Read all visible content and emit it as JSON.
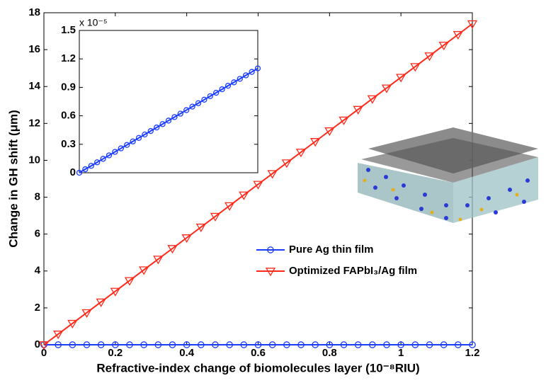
{
  "chart_data": [
    {
      "type": "line",
      "xlabel": "Refractive-index change of biomolecules layer (10⁻⁸RIU)",
      "ylabel": "Change in GH shift (μm)",
      "x": [
        0,
        0.04,
        0.08,
        0.12,
        0.16,
        0.2,
        0.24,
        0.28,
        0.32,
        0.36,
        0.4,
        0.44,
        0.48,
        0.52,
        0.56,
        0.6,
        0.64,
        0.68,
        0.72,
        0.76,
        0.8,
        0.84,
        0.88,
        0.92,
        0.96,
        1,
        1.04,
        1.08,
        1.12,
        1.16,
        1.2
      ],
      "series": [
        {
          "name": "Pure Ag thin film",
          "color": "#1a3cff",
          "marker": "circle",
          "values": [
            0,
            0,
            0,
            0,
            0,
            0,
            0,
            0,
            0,
            0,
            0,
            0,
            0,
            0,
            0,
            0,
            0,
            0,
            0,
            0,
            0,
            0,
            0,
            0,
            0,
            0,
            0,
            0,
            0,
            0,
            0
          ]
        },
        {
          "name": "Optimized FAPbI₃/Ag film",
          "color": "#ff2a1a",
          "marker": "triangle-down",
          "values": [
            0,
            0.58,
            1.16,
            1.74,
            2.32,
            2.9,
            3.48,
            4.06,
            4.64,
            5.22,
            5.8,
            6.38,
            6.96,
            7.54,
            8.12,
            8.7,
            9.28,
            9.86,
            10.44,
            11.02,
            11.6,
            12.18,
            12.76,
            13.34,
            13.92,
            14.5,
            15.08,
            15.66,
            16.24,
            16.82,
            17.4
          ]
        }
      ],
      "xlim": [
        0,
        1.2
      ],
      "xticks": [
        0,
        0.2,
        0.4,
        0.6,
        0.8,
        1,
        1.2
      ],
      "ylim": [
        0,
        18
      ],
      "yticks": [
        0,
        2,
        4,
        6,
        8,
        10,
        12,
        14,
        16,
        18
      ],
      "legend": "right"
    },
    {
      "type": "line",
      "ylabel_multiplier": "x 10⁻⁵",
      "x": [
        0,
        0.04,
        0.08,
        0.12,
        0.16,
        0.2,
        0.24,
        0.28,
        0.32,
        0.36,
        0.4,
        0.44,
        0.48,
        0.52,
        0.56,
        0.6,
        0.64,
        0.68,
        0.72,
        0.76,
        0.8,
        0.84,
        0.88,
        0.92,
        0.96,
        1,
        1.04,
        1.08,
        1.12,
        1.16,
        1.2
      ],
      "series": [
        {
          "color": "#1a3cff",
          "marker": "circle",
          "values": [
            0,
            0.037,
            0.073,
            0.11,
            0.147,
            0.183,
            0.22,
            0.257,
            0.293,
            0.33,
            0.367,
            0.403,
            0.44,
            0.477,
            0.513,
            0.55,
            0.587,
            0.623,
            0.66,
            0.697,
            0.733,
            0.77,
            0.807,
            0.843,
            0.88,
            0.917,
            0.953,
            0.99,
            1.027,
            1.063,
            1.1
          ]
        }
      ],
      "xlim": [
        0,
        1.2
      ],
      "ylim": [
        0,
        1.5
      ],
      "yticks": [
        0,
        0.3,
        0.6,
        0.9,
        1.2,
        1.5
      ]
    }
  ]
}
